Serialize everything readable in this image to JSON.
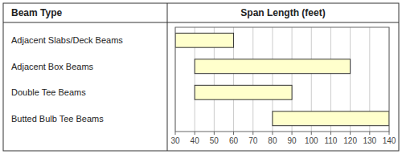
{
  "chart_data": {
    "type": "range_bar",
    "orientation": "horizontal",
    "ylabel": "Beam Type",
    "xlabel": "Span Length (feet)",
    "categories": [
      "Adjacent Slabs/Deck Beams",
      "Adjacent Box Beams",
      "Double Tee Beams",
      "Butted Bulb Tee Beams"
    ],
    "values": [
      [
        30,
        60
      ],
      [
        40,
        120
      ],
      [
        40,
        90
      ],
      [
        80,
        140
      ]
    ],
    "color": "#ffffcc",
    "xlim": [
      30,
      140
    ],
    "xticks": [
      30,
      40,
      50,
      60,
      70,
      80,
      90,
      100,
      110,
      120,
      130,
      140
    ],
    "grid": true
  }
}
